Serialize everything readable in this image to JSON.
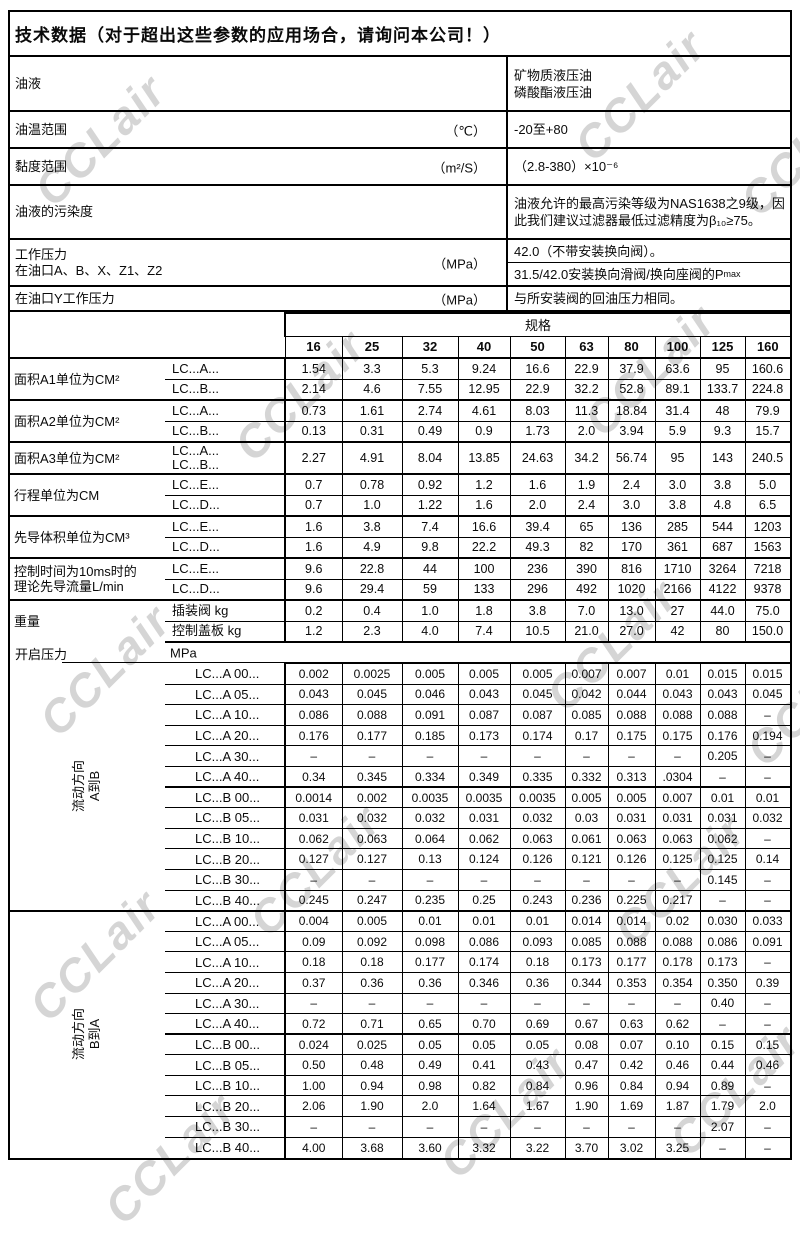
{
  "watermark": {
    "text": "CCLair"
  },
  "header": {
    "title": "技术数据（对于超出这些参数的应用场合，请询问本公司！）"
  },
  "info": {
    "rows": [
      {
        "label": "油液",
        "unit": "",
        "lines": [
          "矿物质液压油",
          "磷酸酯液压油"
        ]
      },
      {
        "label": "油温范围",
        "unit": "（℃）",
        "lines": [
          "-20至+80"
        ]
      },
      {
        "label": "黏度范围",
        "unit": "（m²/S）",
        "lines": [
          "（2.8-380）×10⁻⁶"
        ]
      },
      {
        "label": "油液的污染度",
        "unit": "",
        "lines": [
          "油液允许的最高污染等级为NAS1638之9级，因此我们建议过滤器最低过滤精度为β₁₀≥75。"
        ]
      },
      {
        "label": "工作压力",
        "label2": "在油口A、B、X、Z1、Z2",
        "unit": "（MPa）",
        "split": {
          "top": "42.0（不带安装换向阀）。",
          "bottom_main": "31.5/42.0安装换向滑阀/换向座阀的P",
          "bottom_sub": "max"
        }
      },
      {
        "label": "在油口Y工作压力",
        "unit": "（MPa）",
        "lines": [
          "与所安装阀的回油压力相同。"
        ]
      }
    ]
  },
  "spec_table": {
    "header_label": "规格",
    "sizes": [
      "16",
      "25",
      "32",
      "40",
      "50",
      "63",
      "80",
      "100",
      "125",
      "160"
    ],
    "groups": [
      {
        "label": "面积A1单位为CM²",
        "rows": [
          {
            "sub": "LC...A...",
            "values": [
              "1.54",
              "3.3",
              "5.3",
              "9.24",
              "16.6",
              "22.9",
              "37.9",
              "63.6",
              "95",
              "160.6"
            ]
          },
          {
            "sub": "LC...B...",
            "values": [
              "2.14",
              "4.6",
              "7.55",
              "12.95",
              "22.9",
              "32.2",
              "52.8",
              "89.1",
              "133.7",
              "224.8"
            ]
          }
        ]
      },
      {
        "label": "面积A2单位为CM²",
        "rows": [
          {
            "sub": "LC...A...",
            "values": [
              "0.73",
              "1.61",
              "2.74",
              "4.61",
              "8.03",
              "11.3",
              "18.84",
              "31.4",
              "48",
              "79.9"
            ]
          },
          {
            "sub": "LC...B...",
            "values": [
              "0.13",
              "0.31",
              "0.49",
              "0.9",
              "1.73",
              "2.0",
              "3.94",
              "5.9",
              "9.3",
              "15.7"
            ]
          }
        ]
      },
      {
        "label": "面积A3单位为CM²",
        "rows": [
          {
            "sub_lines": [
              "LC...A...",
              "LC...B..."
            ],
            "tall": true,
            "values": [
              "2.27",
              "4.91",
              "8.04",
              "13.85",
              "24.63",
              "34.2",
              "56.74",
              "95",
              "143",
              "240.5"
            ]
          }
        ]
      },
      {
        "label": "行程单位为CM",
        "rows": [
          {
            "sub": "LC...E...",
            "values": [
              "0.7",
              "0.78",
              "0.92",
              "1.2",
              "1.6",
              "1.9",
              "2.4",
              "3.0",
              "3.8",
              "5.0"
            ]
          },
          {
            "sub": "LC...D...",
            "values": [
              "0.7",
              "1.0",
              "1.22",
              "1.6",
              "2.0",
              "2.4",
              "3.0",
              "3.8",
              "4.8",
              "6.5"
            ]
          }
        ]
      },
      {
        "label": "先导体积单位为CM³",
        "rows": [
          {
            "sub": "LC...E...",
            "values": [
              "1.6",
              "3.8",
              "7.4",
              "16.6",
              "39.4",
              "65",
              "136",
              "285",
              "544",
              "1203"
            ]
          },
          {
            "sub": "LC...D...",
            "values": [
              "1.6",
              "4.9",
              "9.8",
              "22.2",
              "49.3",
              "82",
              "170",
              "361",
              "687",
              "1563"
            ]
          }
        ]
      },
      {
        "label_lines": [
          "控制时间为10ms时的",
          "理论先导流量L/min"
        ],
        "rows": [
          {
            "sub": "LC...E...",
            "values": [
              "9.6",
              "22.8",
              "44",
              "100",
              "236",
              "390",
              "816",
              "1710",
              "3264",
              "7218"
            ]
          },
          {
            "sub": "LC...D...",
            "values": [
              "9.6",
              "29.4",
              "59",
              "133",
              "296",
              "492",
              "1020",
              "2166",
              "4122",
              "9378"
            ]
          }
        ]
      },
      {
        "label": "重量",
        "rows": [
          {
            "sub": "插装阀  kg",
            "values": [
              "0.2",
              "0.4",
              "1.0",
              "1.8",
              "3.8",
              "7.0",
              "13.0",
              "27",
              "44.0",
              "75.0"
            ]
          },
          {
            "sub": "控制盖板  kg",
            "values": [
              "1.2",
              "2.3",
              "4.0",
              "7.4",
              "10.5",
              "21.0",
              "27.0",
              "42",
              "80",
              "150.0"
            ]
          }
        ]
      }
    ]
  },
  "opening_pressure": {
    "label": "开启压力",
    "unit": "MPa",
    "sections": [
      {
        "direction_lines": [
          "流动方向",
          "A到B"
        ],
        "rows": [
          {
            "label": "LC...A 00...",
            "values": [
              "0.002",
              "0.0025",
              "0.005",
              "0.005",
              "0.005",
              "0.007",
              "0.007",
              "0.01",
              "0.015",
              "0.015"
            ]
          },
          {
            "label": "LC...A 05...",
            "values": [
              "0.043",
              "0.045",
              "0.046",
              "0.043",
              "0.045",
              "0.042",
              "0.044",
              "0.043",
              "0.043",
              "0.045"
            ]
          },
          {
            "label": "LC...A 10...",
            "values": [
              "0.086",
              "0.088",
              "0.091",
              "0.087",
              "0.087",
              "0.085",
              "0.088",
              "0.088",
              "0.088",
              "–"
            ]
          },
          {
            "label": "LC...A 20...",
            "values": [
              "0.176",
              "0.177",
              "0.185",
              "0.173",
              "0.174",
              "0.17",
              "0.175",
              "0.175",
              "0.176",
              "0.194"
            ]
          },
          {
            "label": "LC...A 30...",
            "values": [
              "–",
              "–",
              "–",
              "–",
              "–",
              "–",
              "–",
              "–",
              "0.205",
              "–"
            ]
          },
          {
            "label": "LC...A 40...",
            "values": [
              "0.34",
              "0.345",
              "0.334",
              "0.349",
              "0.335",
              "0.332",
              "0.313",
              ".0304",
              "–",
              "–"
            ]
          },
          {
            "label": "LC...B 00...",
            "gb": true,
            "values": [
              "0.0014",
              "0.002",
              "0.0035",
              "0.0035",
              "0.0035",
              "0.005",
              "0.005",
              "0.007",
              "0.01",
              "0.01"
            ]
          },
          {
            "label": "LC...B 05...",
            "values": [
              "0.031",
              "0.032",
              "0.032",
              "0.031",
              "0.032",
              "0.03",
              "0.031",
              "0.031",
              "0.031",
              "0.032"
            ]
          },
          {
            "label": "LC...B 10...",
            "values": [
              "0.062",
              "0.063",
              "0.064",
              "0.062",
              "0.063",
              "0.061",
              "0.063",
              "0.063",
              "0.062",
              "–"
            ]
          },
          {
            "label": "LC...B 20...",
            "values": [
              "0.127",
              "0.127",
              "0.13",
              "0.124",
              "0.126",
              "0.121",
              "0.126",
              "0.125",
              "0.125",
              "0.14"
            ]
          },
          {
            "label": "LC...B 30...",
            "values": [
              "–",
              "–",
              "–",
              "–",
              "–",
              "–",
              "–",
              "–",
              "0.145",
              "–"
            ]
          },
          {
            "label": "LC...B 40...",
            "values": [
              "0.245",
              "0.247",
              "0.235",
              "0.25",
              "0.243",
              "0.236",
              "0.225",
              "0.217",
              "–",
              "–"
            ]
          }
        ]
      },
      {
        "direction_lines": [
          "流动方向",
          "B到A"
        ],
        "rows": [
          {
            "label": "LC...A 00...",
            "values": [
              "0.004",
              "0.005",
              "0.01",
              "0.01",
              "0.01",
              "0.014",
              "0.014",
              "0.02",
              "0.030",
              "0.033"
            ]
          },
          {
            "label": "LC...A 05...",
            "values": [
              "0.09",
              "0.092",
              "0.098",
              "0.086",
              "0.093",
              "0.085",
              "0.088",
              "0.088",
              "0.086",
              "0.091"
            ]
          },
          {
            "label": "LC...A 10...",
            "values": [
              "0.18",
              "0.18",
              "0.177",
              "0.174",
              "0.18",
              "0.173",
              "0.177",
              "0.178",
              "0.173",
              "–"
            ]
          },
          {
            "label": "LC...A 20...",
            "values": [
              "0.37",
              "0.36",
              "0.36",
              "0.346",
              "0.36",
              "0.344",
              "0.353",
              "0.354",
              "0.350",
              "0.39"
            ]
          },
          {
            "label": "LC...A 30...",
            "values": [
              "–",
              "–",
              "–",
              "–",
              "–",
              "–",
              "–",
              "–",
              "0.40",
              "–"
            ]
          },
          {
            "label": "LC...A 40...",
            "values": [
              "0.72",
              "0.71",
              "0.65",
              "0.70",
              "0.69",
              "0.67",
              "0.63",
              "0.62",
              "–",
              "–"
            ]
          },
          {
            "label": "LC...B 00...",
            "gb": true,
            "values": [
              "0.024",
              "0.025",
              "0.05",
              "0.05",
              "0.05",
              "0.08",
              "0.07",
              "0.10",
              "0.15",
              "0.15"
            ]
          },
          {
            "label": "LC...B 05...",
            "values": [
              "0.50",
              "0.48",
              "0.49",
              "0.41",
              "0.43",
              "0.47",
              "0.42",
              "0.46",
              "0.44",
              "0.46"
            ]
          },
          {
            "label": "LC...B 10...",
            "values": [
              "1.00",
              "0.94",
              "0.98",
              "0.82",
              "0.84",
              "0.96",
              "0.84",
              "0.94",
              "0.89",
              "–"
            ]
          },
          {
            "label": "LC...B 20...",
            "values": [
              "2.06",
              "1.90",
              "2.0",
              "1.64",
              "1.67",
              "1.90",
              "1.69",
              "1.87",
              "1.79",
              "2.0"
            ]
          },
          {
            "label": "LC...B 30...",
            "values": [
              "–",
              "–",
              "–",
              "–",
              "–",
              "–",
              "–",
              "–",
              "2.07",
              "–"
            ]
          },
          {
            "label": "LC...B 40...",
            "values": [
              "4.00",
              "3.68",
              "3.60",
              "3.32",
              "3.22",
              "3.70",
              "3.02",
              "3.25",
              "–",
              "–"
            ]
          }
        ]
      }
    ]
  }
}
